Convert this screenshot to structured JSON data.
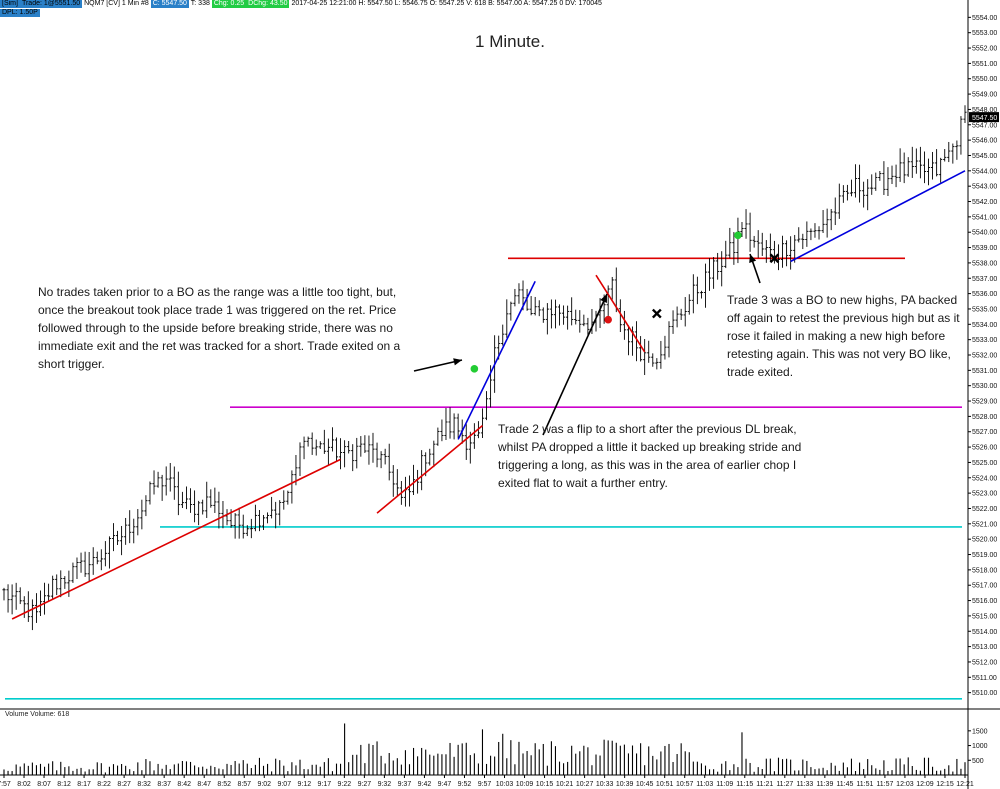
{
  "header": {
    "line1": {
      "sim": "[Sim]",
      "trade": "Trade: 1@5551.50",
      "instrument": "NQM7 [CV]",
      "period": "1 Min",
      "bars_tag": "#8",
      "close_tag": "C: 5547.50",
      "trades_tag": "T: 338",
      "chg_tag": "Chg: 0.25",
      "dchg_tag": "DChg: 43.50",
      "info": "2017-04-25 12:21:00  H: 5547.50  L: 5546.75  O: 5547.25  V: 618  B: 5547.00  A: 5547.25 0  DV: 170045"
    },
    "line2": "DPL: 1.50P"
  },
  "title": "1 Minute.",
  "annotations": {
    "note1": "No trades taken prior to a BO as the range was a little too tight, but, once the breakout took place trade 1 was triggered on the ret.  Price followed through to the upside before breaking stride, there was no immediate exit and the ret was tracked for a short.  Trade exited on a short trigger.",
    "note2": "Trade 2 was a flip to a short after the previous DL break, whilst PA dropped a little it backed up breaking stride and triggering a long, as this was in the area of earlier chop I exited flat to wait a further entry.",
    "note3": "Trade 3 was a BO to new highs, PA backed off again to retest the previous high but as it rose it failed in making a new high before retesting again.  This was not very BO like, trade exited."
  },
  "volume_label": "Volume  Volume: 618",
  "colors": {
    "background": "#ffffff",
    "bars": "#000000",
    "magenta_line": "#cc00cc",
    "cyan_line": "#00cccc",
    "red_line": "#dd0000",
    "blue_line": "#0000dd",
    "long_marker": "#22cc33",
    "short_marker": "#dd1111",
    "header_blue": "#2a80c8",
    "header_green": "#22cc44",
    "last_price_box": "#000000"
  },
  "chart_data": {
    "type": "ohlc",
    "instrument": "NQM7",
    "period": "1 Min",
    "date": "2017-04-25",
    "price_axis": {
      "min": 5509,
      "max": 5555,
      "ticks": [
        "5554.00",
        "5553.00",
        "5552.00",
        "5551.00",
        "5550.00",
        "5549.00",
        "5548.00",
        "5547.00",
        "5546.00",
        "5545.00",
        "5544.00",
        "5543.00",
        "5542.00",
        "5541.00",
        "5540.00",
        "5539.00",
        "5538.00",
        "5537.00",
        "5536.00",
        "5535.00",
        "5534.00",
        "5533.00",
        "5532.00",
        "5531.00",
        "5530.00",
        "5529.00",
        "5528.00",
        "5527.00",
        "5526.00",
        "5525.00",
        "5524.00",
        "5523.00",
        "5522.00",
        "5521.00",
        "5520.00",
        "5519.00",
        "5518.00",
        "5517.00",
        "5516.00",
        "5515.00",
        "5514.00",
        "5513.00",
        "5512.00",
        "5511.00",
        "5510.00"
      ],
      "last_price": "5547.50"
    },
    "time_axis": {
      "ticks": [
        "7:57",
        "8:02",
        "8:07",
        "8:12",
        "8:17",
        "8:22",
        "8:27",
        "8:32",
        "8:37",
        "8:42",
        "8:47",
        "8:52",
        "8:57",
        "9:02",
        "9:07",
        "9:12",
        "9:17",
        "9:22",
        "9:27",
        "9:32",
        "9:37",
        "9:42",
        "9:47",
        "9:52",
        "9:57",
        "10:03",
        "10:09",
        "10:15",
        "10:21",
        "10:27",
        "10:33",
        "10:39",
        "10:45",
        "10:51",
        "10:57",
        "11:03",
        "11:09",
        "11:15",
        "11:21",
        "11:27",
        "11:33",
        "11:39",
        "11:45",
        "11:51",
        "11:57",
        "12:03",
        "12:09",
        "12:15",
        "12:21"
      ]
    },
    "price_path": [
      [
        0,
        5516.5
      ],
      [
        8,
        5515
      ],
      [
        12,
        5517
      ],
      [
        18,
        5518
      ],
      [
        22,
        5518.5
      ],
      [
        26,
        5519.5
      ],
      [
        30,
        5520.5
      ],
      [
        34,
        5522
      ],
      [
        37,
        5523.5
      ],
      [
        40,
        5524
      ],
      [
        43,
        5522.5
      ],
      [
        46,
        5522
      ],
      [
        50,
        5522.5
      ],
      [
        53,
        5522
      ],
      [
        56,
        5521
      ],
      [
        60,
        5521
      ],
      [
        63,
        5521.5
      ],
      [
        66,
        5522
      ],
      [
        68,
        5522
      ],
      [
        70,
        5523
      ],
      [
        72,
        5524.5
      ],
      [
        74,
        5527
      ],
      [
        76,
        5526
      ],
      [
        80,
        5526
      ],
      [
        84,
        5525.5
      ],
      [
        88,
        5526
      ],
      [
        92,
        5525.5
      ],
      [
        96,
        5524
      ],
      [
        98,
        5522.5
      ],
      [
        100,
        5523
      ],
      [
        104,
        5525.5
      ],
      [
        108,
        5527
      ],
      [
        111,
        5527.5
      ],
      [
        114,
        5526.5
      ],
      [
        117,
        5526.5
      ],
      [
        119,
        5528.5
      ],
      [
        121,
        5532
      ],
      [
        124,
        5535
      ],
      [
        127,
        5536
      ],
      [
        130,
        5534.5
      ],
      [
        135,
        5535
      ],
      [
        140,
        5534.5
      ],
      [
        146,
        5534
      ],
      [
        150,
        5536.5
      ],
      [
        152,
        5534
      ],
      [
        155,
        5533
      ],
      [
        158,
        5532
      ],
      [
        161,
        5532
      ],
      [
        165,
        5534
      ],
      [
        170,
        5536
      ],
      [
        175,
        5537.5
      ],
      [
        180,
        5539
      ],
      [
        182,
        5540.5
      ],
      [
        186,
        5539
      ],
      [
        190,
        5538.5
      ],
      [
        195,
        5539.5
      ],
      [
        200,
        5540
      ],
      [
        205,
        5541.5
      ],
      [
        210,
        5543
      ],
      [
        215,
        5543
      ],
      [
        220,
        5544
      ],
      [
        225,
        5544
      ],
      [
        230,
        5544
      ],
      [
        234,
        5545.5
      ],
      [
        237,
        5547.5
      ]
    ],
    "bar_count": 238,
    "volume_axis": {
      "ticks": [
        "1500",
        "1000",
        "500"
      ]
    },
    "overlays": [
      {
        "kind": "hline",
        "color": "magenta",
        "price": 5528.6
      },
      {
        "kind": "hline",
        "color": "cyan",
        "price": 5520.8
      },
      {
        "kind": "hline",
        "color": "cyan",
        "price": 5509.6
      },
      {
        "kind": "hline",
        "color": "red",
        "price": 5538.3
      },
      {
        "kind": "trendline",
        "color": "red",
        "from": [
          2,
          5514.8
        ],
        "to": [
          83,
          5525.2
        ]
      },
      {
        "kind": "trendline",
        "color": "red",
        "from": [
          92,
          5521.7
        ],
        "to": [
          118,
          5527.4
        ]
      },
      {
        "kind": "trendline",
        "color": "blue",
        "from": [
          112,
          5526.5
        ],
        "to": [
          131,
          5536.8
        ]
      },
      {
        "kind": "trendline",
        "color": "red",
        "from": [
          146,
          5537.2
        ],
        "to": [
          158,
          5532.2
        ]
      },
      {
        "kind": "trendline",
        "color": "blue",
        "from": [
          194,
          5538.1
        ],
        "to": [
          237,
          5544
        ]
      }
    ],
    "markers": [
      {
        "kind": "long",
        "color": "green",
        "bar": 116,
        "price": 5531.1
      },
      {
        "kind": "short",
        "color": "red",
        "bar": 149,
        "price": 5534.3
      },
      {
        "kind": "exit",
        "bar": 161,
        "price": 5534.7
      },
      {
        "kind": "long",
        "color": "green",
        "bar": 181,
        "price": 5539.8
      },
      {
        "kind": "exit",
        "bar": 190,
        "price": 5538.3
      }
    ]
  }
}
